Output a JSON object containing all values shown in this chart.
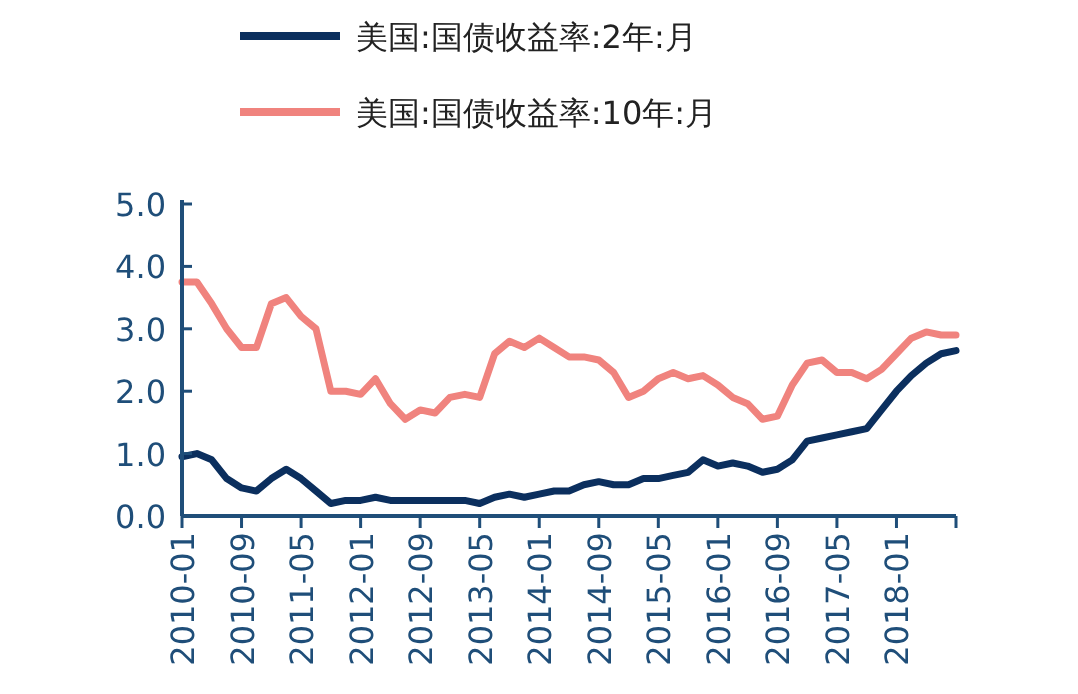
{
  "chart_data": {
    "type": "line",
    "categories": [
      "2010-01",
      null,
      null,
      null,
      "2010-09",
      null,
      null,
      null,
      "2011-05",
      null,
      null,
      null,
      "2012-01",
      null,
      null,
      null,
      "2012-09",
      null,
      null,
      null,
      "2013-05",
      null,
      null,
      null,
      "2014-01",
      null,
      null,
      null,
      "2014-09",
      null,
      null,
      null,
      "2015-05",
      null,
      null,
      null,
      "2016-01",
      null,
      null,
      null,
      "2016-09",
      null,
      null,
      null,
      "2017-05",
      null,
      null,
      null,
      "2018-01",
      null,
      null,
      null,
      null
    ],
    "series": [
      {
        "name": "美国:国债收益率:2年:月",
        "color": "#0b2f5e",
        "values": [
          0.95,
          1.0,
          0.9,
          0.6,
          0.45,
          0.4,
          0.6,
          0.75,
          0.6,
          0.4,
          0.2,
          0.25,
          0.25,
          0.3,
          0.25,
          0.25,
          0.25,
          0.25,
          0.25,
          0.25,
          0.2,
          0.3,
          0.35,
          0.3,
          0.35,
          0.4,
          0.4,
          0.5,
          0.55,
          0.5,
          0.5,
          0.6,
          0.6,
          0.65,
          0.7,
          0.9,
          0.8,
          0.85,
          0.8,
          0.7,
          0.75,
          0.9,
          1.2,
          1.25,
          1.3,
          1.35,
          1.4,
          1.7,
          2.0,
          2.25,
          2.45,
          2.6,
          2.65
        ]
      },
      {
        "name": "美国:国债收益率:10年:月",
        "color": "#f0837e",
        "values": [
          3.75,
          3.75,
          3.4,
          3.0,
          2.7,
          2.7,
          3.4,
          3.5,
          3.2,
          3.0,
          2.0,
          2.0,
          1.95,
          2.2,
          1.8,
          1.55,
          1.7,
          1.65,
          1.9,
          1.95,
          1.9,
          2.6,
          2.8,
          2.7,
          2.85,
          2.7,
          2.55,
          2.55,
          2.5,
          2.3,
          1.9,
          2.0,
          2.2,
          2.3,
          2.2,
          2.25,
          2.1,
          1.9,
          1.8,
          1.55,
          1.6,
          2.1,
          2.45,
          2.5,
          2.3,
          2.3,
          2.2,
          2.35,
          2.6,
          2.85,
          2.95,
          2.9,
          2.9
        ]
      }
    ],
    "ylim": [
      0,
      5
    ],
    "yticks": [
      {
        "value": 0,
        "label": "0.0"
      },
      {
        "value": 1,
        "label": "1.0"
      },
      {
        "value": 2,
        "label": "2.0"
      },
      {
        "value": 3,
        "label": "3.0"
      },
      {
        "value": 4,
        "label": "4.0"
      },
      {
        "value": 5,
        "label": "5.0"
      }
    ],
    "grid": false,
    "legend": "top",
    "marker": "none",
    "line_style": "solid"
  }
}
